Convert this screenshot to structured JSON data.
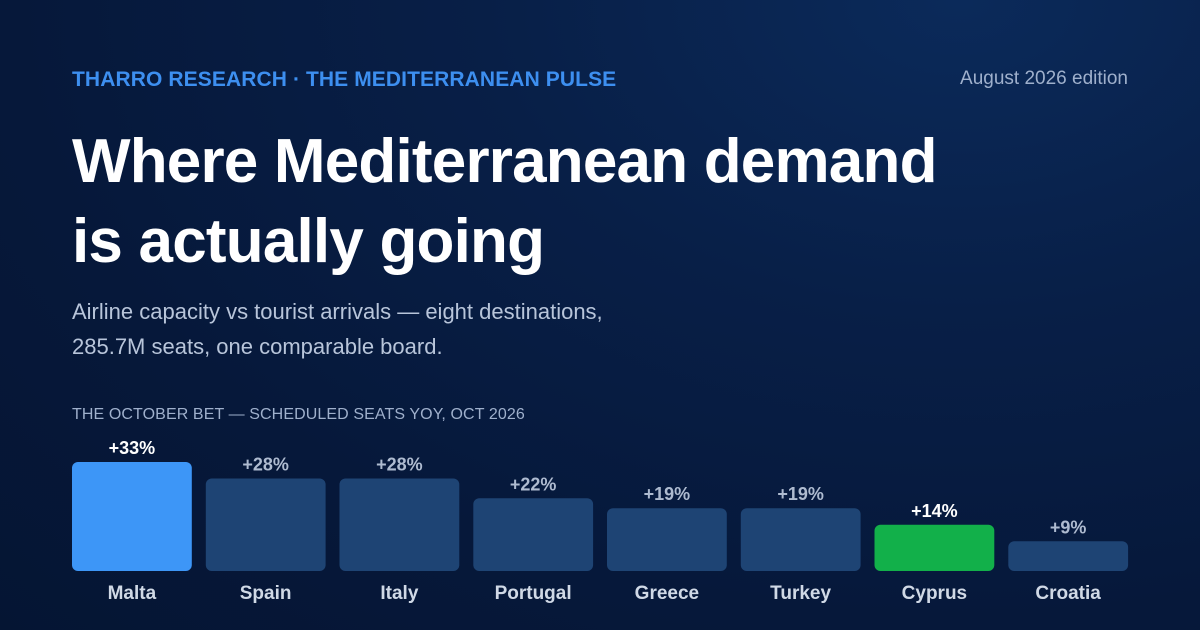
{
  "header": {
    "brand": "THARRO RESEARCH · THE MEDITERRANEAN PULSE",
    "edition": "August 2026 edition"
  },
  "headline": {
    "line1": "Where Mediterranean demand",
    "line2": "is actually going"
  },
  "subtitle": {
    "line1": "Airline capacity vs tourist arrivals — eight destinations,",
    "line2": "285.7M seats, one comparable board."
  },
  "chart_data": {
    "type": "bar",
    "title": "THE OCTOBER BET — SCHEDULED SEATS YOY, OCT 2026",
    "categories": [
      "Malta",
      "Spain",
      "Italy",
      "Portugal",
      "Greece",
      "Turkey",
      "Cyprus",
      "Croatia"
    ],
    "values": [
      33,
      28,
      28,
      22,
      19,
      19,
      14,
      9
    ],
    "value_labels": [
      "+33%",
      "+28%",
      "+28%",
      "+22%",
      "+19%",
      "+19%",
      "+14%",
      "+9%"
    ],
    "highlight": {
      "Malta": "#3d96f7",
      "Cyprus": "#12b04a"
    },
    "default_color": "#1e4474",
    "ylim": [
      0,
      33
    ],
    "grid": false
  }
}
